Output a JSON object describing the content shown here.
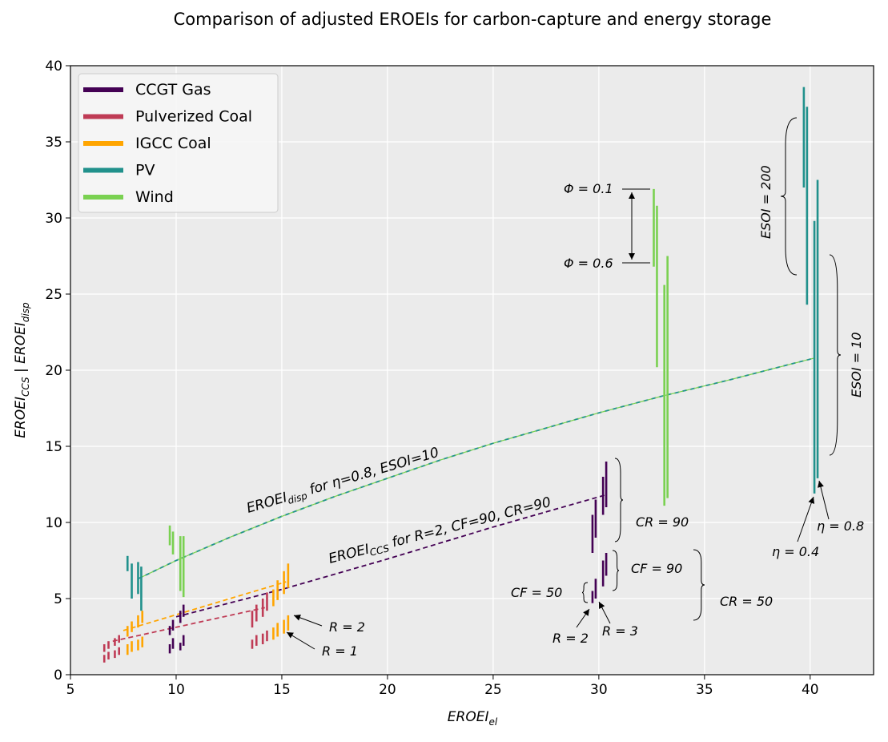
{
  "chart_data": {
    "type": "scatter",
    "title": "Comparison of adjusted EROEIs for carbon-capture and energy storage",
    "xlabel": "EROEI",
    "xlabel_sub": "el",
    "ylabel_part1": "EROEI",
    "ylabel_sub1": "CCS",
    "ylabel_sep": " | ",
    "ylabel_part2": "EROEI",
    "ylabel_sub2": "disp",
    "xlim": [
      5,
      43
    ],
    "ylim": [
      0,
      40
    ],
    "xticks": [
      5,
      10,
      15,
      20,
      25,
      30,
      35,
      40
    ],
    "yticks": [
      0,
      5,
      10,
      15,
      20,
      25,
      30,
      35,
      40
    ],
    "grid": true,
    "legend_position": "top-left",
    "series": [
      {
        "name": "CCGT Gas",
        "color": "#440154",
        "segments": [
          [
            9.7,
            1.4,
            2.0
          ],
          [
            9.85,
            1.7,
            2.4
          ],
          [
            10.2,
            1.6,
            2.1
          ],
          [
            10.35,
            1.9,
            2.6
          ],
          [
            9.7,
            2.6,
            3.2
          ],
          [
            9.85,
            2.9,
            3.6
          ],
          [
            10.2,
            3.4,
            4.2
          ],
          [
            10.35,
            3.8,
            4.6
          ],
          [
            29.7,
            8.0,
            10.5
          ],
          [
            29.85,
            9.0,
            11.5
          ],
          [
            30.2,
            10.5,
            13.0
          ],
          [
            30.35,
            11.0,
            14.0
          ],
          [
            29.7,
            4.7,
            5.5
          ],
          [
            29.85,
            5.0,
            6.3
          ],
          [
            30.2,
            5.8,
            7.5
          ],
          [
            30.35,
            6.5,
            8.0
          ]
        ]
      },
      {
        "name": "Pulverized Coal",
        "color": "#bf3b55",
        "segments": [
          [
            6.6,
            0.8,
            1.3
          ],
          [
            6.8,
            1.0,
            1.5
          ],
          [
            7.1,
            1.1,
            1.6
          ],
          [
            7.3,
            1.3,
            1.8
          ],
          [
            6.6,
            1.5,
            2.0
          ],
          [
            6.8,
            1.7,
            2.2
          ],
          [
            7.1,
            1.9,
            2.4
          ],
          [
            7.3,
            2.1,
            2.6
          ],
          [
            13.6,
            1.7,
            2.3
          ],
          [
            13.8,
            1.9,
            2.6
          ],
          [
            14.1,
            2.0,
            2.7
          ],
          [
            14.3,
            2.2,
            2.9
          ],
          [
            13.6,
            3.1,
            4.2
          ],
          [
            13.8,
            3.5,
            4.6
          ],
          [
            14.1,
            3.8,
            5.0
          ],
          [
            14.3,
            4.2,
            5.4
          ]
        ]
      },
      {
        "name": "IGCC Coal",
        "color": "#ffa500",
        "segments": [
          [
            7.7,
            1.3,
            2.0
          ],
          [
            7.9,
            1.5,
            2.2
          ],
          [
            8.2,
            1.6,
            2.3
          ],
          [
            8.4,
            1.8,
            2.5
          ],
          [
            7.7,
            2.5,
            3.2
          ],
          [
            7.9,
            2.8,
            3.5
          ],
          [
            8.2,
            3.1,
            3.9
          ],
          [
            8.4,
            3.4,
            4.2
          ],
          [
            14.6,
            2.3,
            3.1
          ],
          [
            14.8,
            2.5,
            3.4
          ],
          [
            15.1,
            2.7,
            3.6
          ],
          [
            15.3,
            2.9,
            3.9
          ],
          [
            14.6,
            4.5,
            5.6
          ],
          [
            14.8,
            4.9,
            6.2
          ],
          [
            15.1,
            5.3,
            6.8
          ],
          [
            15.3,
            5.7,
            7.3
          ]
        ]
      },
      {
        "name": "PV",
        "color": "#21918c",
        "segments": [
          [
            7.7,
            6.8,
            7.8
          ],
          [
            7.9,
            5.0,
            7.3
          ],
          [
            8.2,
            5.3,
            7.4
          ],
          [
            8.35,
            4.2,
            7.1
          ],
          [
            39.7,
            32.0,
            38.6
          ],
          [
            39.85,
            24.3,
            37.3
          ],
          [
            40.2,
            11.9,
            29.8
          ],
          [
            40.35,
            12.9,
            32.5
          ]
        ]
      },
      {
        "name": "Wind",
        "color": "#7ad151",
        "segments": [
          [
            9.7,
            8.5,
            9.8
          ],
          [
            9.85,
            7.9,
            9.4
          ],
          [
            10.2,
            5.5,
            9.1
          ],
          [
            10.35,
            5.1,
            9.1
          ],
          [
            32.6,
            26.8,
            31.9
          ],
          [
            32.75,
            20.2,
            30.8
          ],
          [
            33.1,
            11.1,
            25.6
          ],
          [
            33.25,
            11.6,
            27.5
          ]
        ]
      }
    ],
    "trend_lines": [
      {
        "label_main": "EROEI",
        "label_sub": "disp",
        "label_tail": " for η=0.8, ESOI=10",
        "color": "#21918c",
        "overlay_color": "#7ad151",
        "x": [
          8.2,
          10.0,
          12.5,
          15.0,
          17.5,
          20.0,
          22.5,
          25.0,
          27.5,
          30.0,
          33.0,
          36.0,
          40.2
        ],
        "y": [
          6.3,
          7.5,
          9.0,
          10.4,
          11.7,
          12.9,
          14.1,
          15.2,
          16.2,
          17.2,
          18.3,
          19.3,
          20.8
        ]
      },
      {
        "label_main": "EROEI",
        "label_sub": "CCS",
        "label_tail": " for R=2, CF=90, CR=90",
        "color": "#440154",
        "x": [
          10.0,
          15.0,
          20.0,
          25.0,
          30.3
        ],
        "y": [
          3.8,
          5.6,
          7.6,
          9.7,
          11.8
        ]
      },
      {
        "color": "#ffa500",
        "x": [
          7.5,
          15.2
        ],
        "y": [
          2.9,
          6.1
        ]
      },
      {
        "color": "#bf3b55",
        "x": [
          7.0,
          14.2
        ],
        "y": [
          2.2,
          4.4
        ]
      }
    ],
    "annotations": {
      "phi_01": "Φ = 0.1",
      "phi_06": "Φ = 0.6",
      "esoi_200": "ESOI = 200",
      "esoi_10": "ESOI = 10",
      "cr_90": "CR = 90",
      "cf_90": "CF = 90",
      "cf_50": "CF = 50",
      "cr_50": "CR = 50",
      "r_2_coal": "R = 2",
      "r_1_coal": "R = 1",
      "r_2_gas": "R = 2",
      "r_3_gas": "R = 3",
      "eta_04": "η = 0.4",
      "eta_08": "η = 0.8"
    }
  }
}
